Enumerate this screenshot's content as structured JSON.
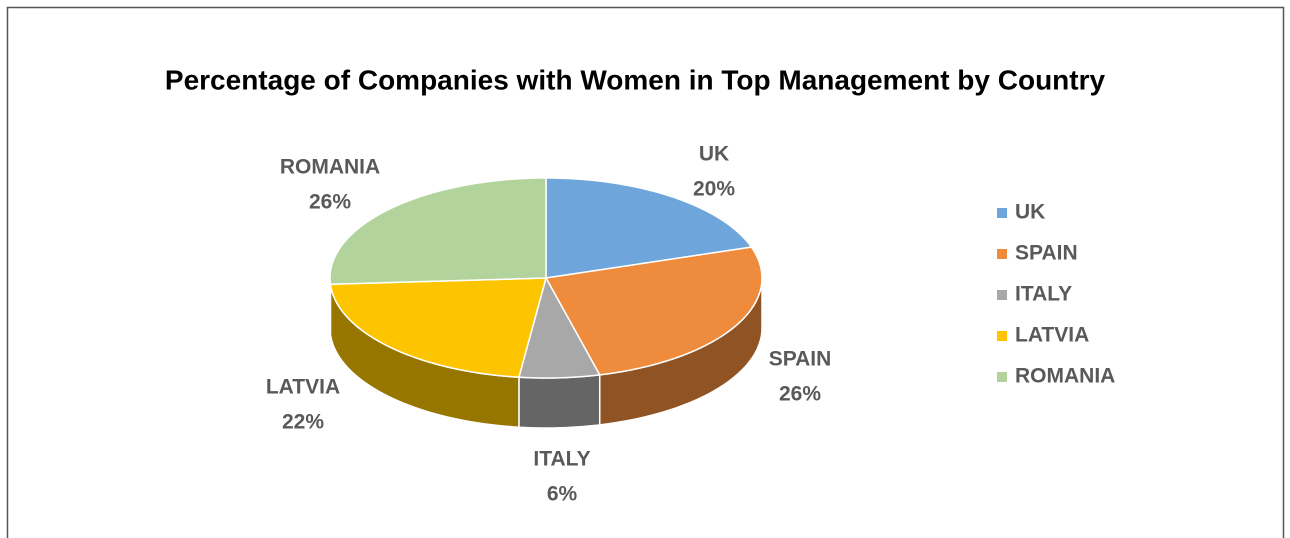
{
  "chart_data": {
    "type": "pie3d",
    "title": "Percentage of Companies with Women in Top Management by Country",
    "categories": [
      "UK",
      "SPAIN",
      "ITALY",
      "LATVIA",
      "ROMANIA"
    ],
    "values": [
      20,
      26,
      6,
      22,
      26
    ],
    "value_labels": [
      "20%",
      "26%",
      "6%",
      "22%",
      "26%"
    ],
    "colors": [
      "#6ea6dc",
      "#ef8b3c",
      "#a8a8a8",
      "#fcc500",
      "#b2d49c"
    ],
    "legend": "right"
  }
}
